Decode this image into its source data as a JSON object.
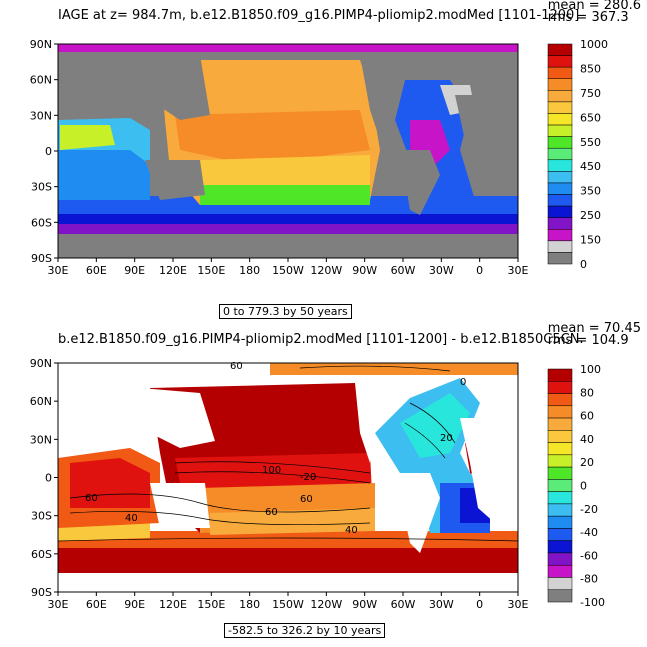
{
  "colors": {
    "land": "#7f7f7f",
    "red_dark": "#b40000",
    "red": "#e0120f",
    "orange_red": "#f05a14",
    "orange": "#f58c28",
    "light_orange": "#f8aa3c",
    "gold": "#fac83c",
    "yellow": "#f5e628",
    "yellow_green": "#c8f028",
    "green": "#50e628",
    "light_green": "#5aeb78",
    "cyan": "#28e6dc",
    "light_blue": "#3cbef0",
    "blue": "#1e8cf0",
    "mid_blue": "#1e5af0",
    "deep_blue": "#0a14d2",
    "purple": "#8214c8",
    "magenta": "#c814c8",
    "light_gray": "#d2d2d2"
  },
  "top": {
    "title": "IAGE at z= 984.7m, b.e12.B1850.f09_g16.PIMP4-pliomip2.modMed [1101-1200]",
    "mean": "mean = 280.6",
    "rms": "rms = 367.3",
    "range_note": "0 to 779.3 by 50 years",
    "colorbar_labels": [
      "1000",
      "850",
      "750",
      "650",
      "550",
      "450",
      "350",
      "250",
      "150",
      "0"
    ]
  },
  "bottom": {
    "title": "b.e12.B1850.f09_g16.PIMP4-pliomip2.modMed [1101-1200] - b.e12.B1850C5CN.",
    "mean": "mean = 70.45",
    "rms": "rms = 104.9",
    "range_note": "-582.5 to 326.2 by 10 years",
    "colorbar_labels": [
      "100",
      "80",
      "60",
      "40",
      "20",
      "0",
      "-20",
      "-40",
      "-60",
      "-80",
      "-100"
    ],
    "contour_labels": [
      "60",
      "100",
      "60",
      "-20",
      "60",
      "40",
      "60",
      "40",
      "20",
      "0"
    ]
  },
  "lat_labels": [
    "90N",
    "60N",
    "30N",
    "0",
    "30S",
    "60S",
    "90S"
  ],
  "lon_labels": [
    "30E",
    "60E",
    "90E",
    "120E",
    "150E",
    "180",
    "150W",
    "120W",
    "90W",
    "60W",
    "30W",
    "0",
    "30E"
  ]
}
